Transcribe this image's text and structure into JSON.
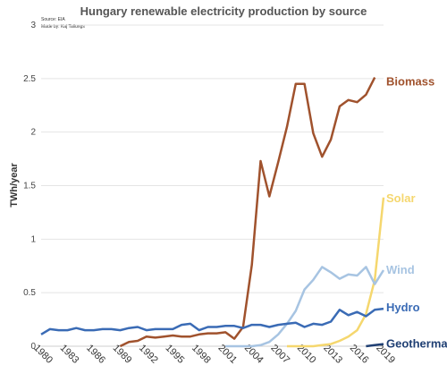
{
  "chart_data": {
    "type": "line",
    "title": "Hungary renewable electricity production by source",
    "source_note": "Source: EIA",
    "author_note": "Made by: Kaj Tallungs",
    "ylabel": "TWh/year",
    "xlabel": "",
    "ylim": [
      0,
      3
    ],
    "xlim": [
      1980,
      2019
    ],
    "yticks": [
      "0",
      "0.5",
      "1",
      "1.5",
      "2",
      "2.5",
      "3"
    ],
    "ytick_values": [
      0,
      0.5,
      1,
      1.5,
      2,
      2.5,
      3
    ],
    "xticks": [
      "1980",
      "1983",
      "1986",
      "1989",
      "1992",
      "1995",
      "1998",
      "2001",
      "2004",
      "2007",
      "2010",
      "2013",
      "2016",
      "2019"
    ],
    "xtick_values": [
      1980,
      1983,
      1986,
      1989,
      1992,
      1995,
      1998,
      2001,
      2004,
      2007,
      2010,
      2013,
      2016,
      2019
    ],
    "grid": true,
    "legend": "labels at line ends",
    "series": [
      {
        "name": "Biomass",
        "color": "#a0522d",
        "x": [
          1989,
          1990,
          1991,
          1992,
          1993,
          1994,
          1995,
          1996,
          1997,
          1998,
          1999,
          2000,
          2001,
          2002,
          2003,
          2004,
          2005,
          2006,
          2007,
          2008,
          2009,
          2010,
          2011,
          2012,
          2013,
          2014,
          2015,
          2016,
          2017,
          2018
        ],
        "y": [
          0.0,
          0.04,
          0.05,
          0.09,
          0.08,
          0.09,
          0.1,
          0.09,
          0.09,
          0.11,
          0.12,
          0.12,
          0.13,
          0.07,
          0.18,
          0.76,
          1.73,
          1.4,
          1.72,
          2.05,
          2.45,
          2.45,
          1.99,
          1.77,
          1.93,
          2.24,
          2.3,
          2.28,
          2.35,
          2.51
        ]
      },
      {
        "name": "Solar",
        "color": "#f5d76e",
        "x": [
          2008,
          2009,
          2010,
          2011,
          2012,
          2013,
          2014,
          2015,
          2016,
          2017,
          2018,
          2019
        ],
        "y": [
          0.0,
          0.0,
          0.0,
          0.0,
          0.01,
          0.02,
          0.05,
          0.09,
          0.15,
          0.3,
          0.62,
          1.39
        ]
      },
      {
        "name": "Wind",
        "color": "#a7c4e2",
        "x": [
          2001,
          2002,
          2003,
          2004,
          2005,
          2006,
          2007,
          2008,
          2009,
          2010,
          2011,
          2012,
          2013,
          2014,
          2015,
          2016,
          2017,
          2018,
          2019
        ],
        "y": [
          0.0,
          0.0,
          0.0,
          0.0,
          0.01,
          0.04,
          0.11,
          0.21,
          0.33,
          0.53,
          0.62,
          0.74,
          0.69,
          0.63,
          0.67,
          0.66,
          0.74,
          0.58,
          0.71
        ]
      },
      {
        "name": "Hydro",
        "color": "#3a6bb5",
        "x": [
          1980,
          1981,
          1982,
          1983,
          1984,
          1985,
          1986,
          1987,
          1988,
          1989,
          1990,
          1991,
          1992,
          1993,
          1994,
          1995,
          1996,
          1997,
          1998,
          1999,
          2000,
          2001,
          2002,
          2003,
          2004,
          2005,
          2006,
          2007,
          2008,
          2009,
          2010,
          2011,
          2012,
          2013,
          2014,
          2015,
          2016,
          2017,
          2018,
          2019
        ],
        "y": [
          0.11,
          0.16,
          0.15,
          0.15,
          0.17,
          0.15,
          0.15,
          0.16,
          0.16,
          0.15,
          0.17,
          0.18,
          0.15,
          0.16,
          0.16,
          0.16,
          0.2,
          0.21,
          0.15,
          0.18,
          0.18,
          0.19,
          0.19,
          0.17,
          0.2,
          0.2,
          0.18,
          0.2,
          0.21,
          0.22,
          0.18,
          0.21,
          0.2,
          0.23,
          0.34,
          0.29,
          0.32,
          0.28,
          0.34,
          0.35
        ]
      },
      {
        "name": "Geothermal",
        "color": "#1f3f73",
        "x": [
          2017,
          2018,
          2019
        ],
        "y": [
          0.0,
          0.01,
          0.02
        ]
      }
    ]
  }
}
